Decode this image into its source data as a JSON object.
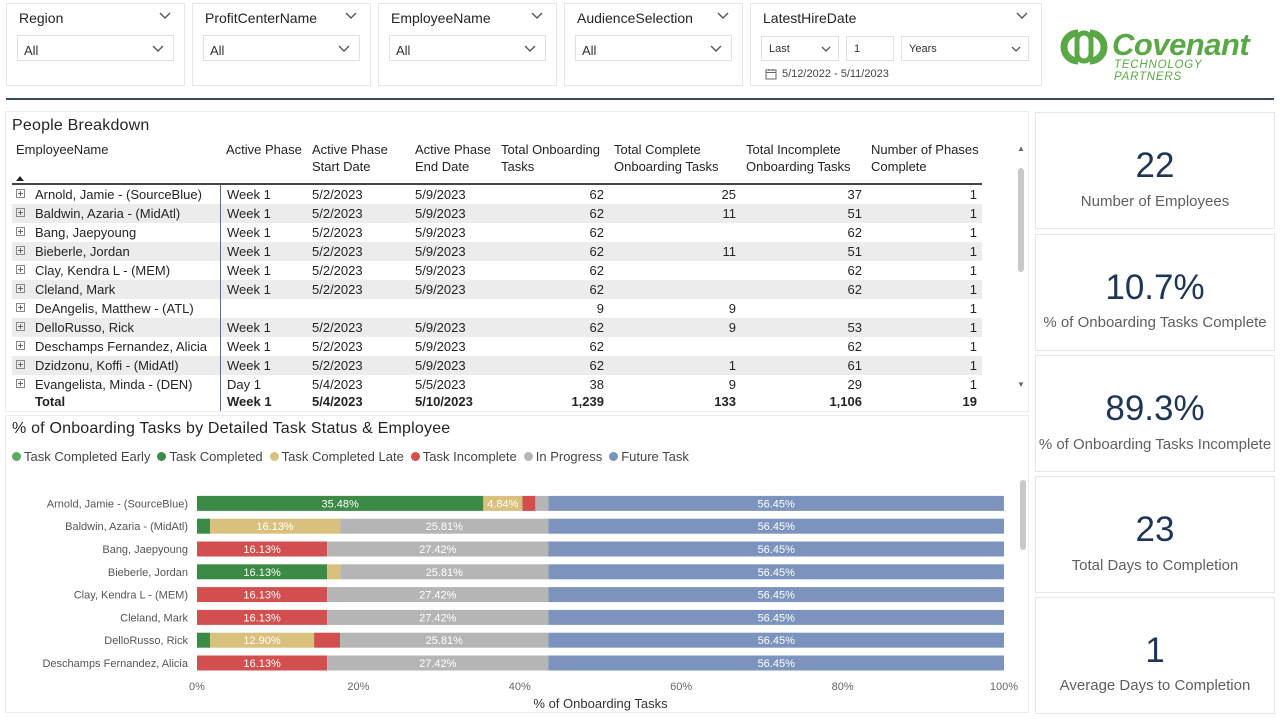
{
  "slicers": [
    {
      "title": "Region",
      "value": "All"
    },
    {
      "title": "ProfitCenterName",
      "value": "All"
    },
    {
      "title": "EmployeeName",
      "value": "All"
    },
    {
      "title": "AudienceSelection",
      "value": "All"
    }
  ],
  "date_slicer": {
    "title": "LatestHireDate",
    "mode": "Last",
    "count": "1",
    "unit": "Years",
    "range": "5/12/2022 - 5/11/2023"
  },
  "logo": {
    "name": "Covenant",
    "sub": "TECHNOLOGY PARTNERS"
  },
  "table": {
    "title": "People Breakdown",
    "headers": [
      "EmployeeName",
      "Active Phase",
      "Active Phase Start Date",
      "Active Phase End Date",
      "Total Onboarding Tasks",
      "Total Complete Onboarding Tasks",
      "Total Incomplete Onboarding Tasks",
      "Number of Phases Complete"
    ],
    "rows": [
      [
        "Arnold, Jamie - (SourceBlue)",
        "Week 1",
        "5/2/2023",
        "5/9/2023",
        "62",
        "25",
        "37",
        "1"
      ],
      [
        "Baldwin, Azaria - (MidAtl)",
        "Week 1",
        "5/2/2023",
        "5/9/2023",
        "62",
        "11",
        "51",
        "1"
      ],
      [
        "Bang, Jaepyoung",
        "Week 1",
        "5/2/2023",
        "5/9/2023",
        "62",
        "",
        "62",
        "1"
      ],
      [
        "Bieberle, Jordan",
        "Week 1",
        "5/2/2023",
        "5/9/2023",
        "62",
        "11",
        "51",
        "1"
      ],
      [
        "Clay, Kendra L - (MEM)",
        "Week 1",
        "5/2/2023",
        "5/9/2023",
        "62",
        "",
        "62",
        "1"
      ],
      [
        "Cleland, Mark",
        "Week 1",
        "5/2/2023",
        "5/9/2023",
        "62",
        "",
        "62",
        "1"
      ],
      [
        "DeAngelis, Matthew - (ATL)",
        "",
        "",
        "",
        "9",
        "9",
        "",
        "1"
      ],
      [
        "DelloRusso, Rick",
        "Week 1",
        "5/2/2023",
        "5/9/2023",
        "62",
        "9",
        "53",
        "1"
      ],
      [
        "Deschamps Fernandez, Alicia",
        "Week 1",
        "5/2/2023",
        "5/9/2023",
        "62",
        "",
        "62",
        "1"
      ],
      [
        "Dzidzonu, Koffi - (MidAtl)",
        "Week 1",
        "5/2/2023",
        "5/9/2023",
        "62",
        "1",
        "61",
        "1"
      ],
      [
        "Evangelista, Minda - (DEN)",
        "Day 1",
        "5/4/2023",
        "5/5/2023",
        "38",
        "9",
        "29",
        "1"
      ]
    ],
    "total": [
      "Total",
      "Week 1",
      "5/4/2023",
      "5/10/2023",
      "1,239",
      "133",
      "1,106",
      "19"
    ]
  },
  "chart_data": {
    "type": "stacked-bar-horizontal",
    "title": "% of Onboarding Tasks by Detailed Task Status & Employee",
    "xlabel": "% of Onboarding Tasks",
    "ylabel": "",
    "xlim": [
      0,
      100
    ],
    "ticks": [
      "0%",
      "20%",
      "40%",
      "60%",
      "80%",
      "100%"
    ],
    "legend_position": "top-left",
    "series_names": [
      "Task Completed Early",
      "Task Completed",
      "Task Completed Late",
      "Task Incomplete",
      "In Progress",
      "Future Task"
    ],
    "series_colors": [
      "#5aaa62",
      "#3b8a45",
      "#d9c07c",
      "#d34f4f",
      "#b5b5b5",
      "#7b93bd"
    ],
    "categories": [
      "Arnold, Jamie - (SourceBlue)",
      "Baldwin, Azaria - (MidAtl)",
      "Bang, Jaepyoung",
      "Bieberle, Jordan",
      "Clay, Kendra L - (MEM)",
      "Cleland, Mark",
      "DelloRusso, Rick",
      "Deschamps Fernandez, Alicia"
    ],
    "series": [
      {
        "name": "Task Completed Early",
        "values": [
          0,
          0,
          0,
          0,
          0,
          0,
          0,
          0
        ]
      },
      {
        "name": "Task Completed",
        "values": [
          35.48,
          1.61,
          0,
          16.13,
          0,
          0,
          1.61,
          0
        ]
      },
      {
        "name": "Task Completed Late",
        "values": [
          4.84,
          16.13,
          0,
          1.61,
          0,
          0,
          12.9,
          0
        ]
      },
      {
        "name": "Task Incomplete",
        "values": [
          1.61,
          0,
          16.13,
          0,
          16.13,
          16.13,
          3.23,
          16.13
        ]
      },
      {
        "name": "In Progress",
        "values": [
          1.61,
          25.81,
          27.42,
          25.81,
          27.42,
          27.42,
          25.81,
          27.42
        ]
      },
      {
        "name": "Future Task",
        "values": [
          56.45,
          56.45,
          56.45,
          56.45,
          56.45,
          56.45,
          56.45,
          56.45
        ]
      }
    ],
    "labels": [
      [
        "",
        "35.48%",
        "4.84%",
        "",
        "",
        "56.45%"
      ],
      [
        "",
        "",
        "16.13%",
        "",
        "25.81%",
        "56.45%"
      ],
      [
        "",
        "",
        "",
        "16.13%",
        "27.42%",
        "56.45%"
      ],
      [
        "",
        "16.13%",
        "",
        "",
        "25.81%",
        "56.45%"
      ],
      [
        "",
        "",
        "",
        "16.13%",
        "27.42%",
        "56.45%"
      ],
      [
        "",
        "",
        "",
        "16.13%",
        "27.42%",
        "56.45%"
      ],
      [
        "",
        "",
        "12.90%",
        "",
        "25.81%",
        "56.45%"
      ],
      [
        "",
        "",
        "",
        "16.13%",
        "27.42%",
        "56.45%"
      ]
    ]
  },
  "kpis": [
    {
      "value": "22",
      "label": "Number of Employees"
    },
    {
      "value": "10.7%",
      "label": "% of Onboarding Tasks Complete"
    },
    {
      "value": "89.3%",
      "label": "% of Onboarding Tasks Incomplete"
    },
    {
      "value": "23",
      "label": "Total Days to Completion"
    },
    {
      "value": "1",
      "label": "Average Days to Completion"
    }
  ]
}
